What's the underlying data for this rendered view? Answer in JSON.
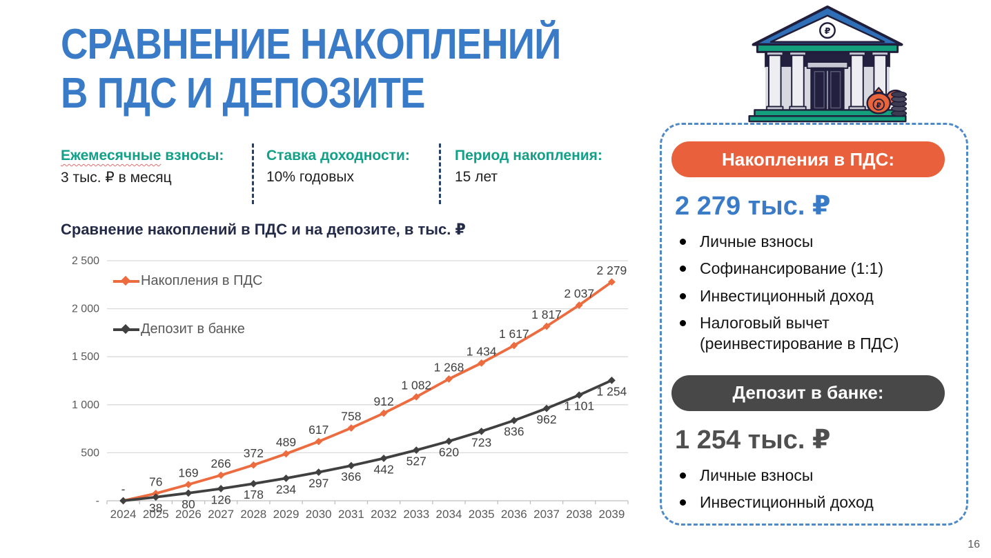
{
  "page": {
    "number": "16",
    "background": "#FFFFFF"
  },
  "title": {
    "line1": "СРАВНЕНИЕ НАКОПЛЕНИЙ",
    "line2": "В ПДС И ДЕПОЗИТЕ",
    "color": "#3A7BC8"
  },
  "parameters": [
    {
      "label_wavy": "Ежемесячные",
      "label_rest": " взносы:",
      "value": "3 тыс. ₽ в месяц"
    },
    {
      "label_wavy": "",
      "label_rest": "Ставка доходности:",
      "value": "10% годовых"
    },
    {
      "label_wavy": "",
      "label_rest": "Период накопления:",
      "value": "15 лет"
    }
  ],
  "colors": {
    "title_blue": "#3A7BC8",
    "accent_teal": "#12A089",
    "accent_orange": "#E8613C",
    "line_orange": "#EC6B3F",
    "line_dark": "#404040",
    "dark_pill": "#484848",
    "panel_border": "#4E8AC8",
    "separator_navy": "#24406B",
    "gridline": "#D9D9D9",
    "axis_text": "#595959",
    "data_label_text": "#3F3F3F"
  },
  "chart_data": {
    "type": "line",
    "title": "Сравнение накоплений в ПДС и на депозите, в тыс. ₽",
    "x": [
      2024,
      2025,
      2026,
      2027,
      2028,
      2029,
      2030,
      2031,
      2032,
      2033,
      2034,
      2035,
      2036,
      2037,
      2038,
      2039
    ],
    "ylim": [
      0,
      2500
    ],
    "ytick_step": 500,
    "ytick_labels": [
      "-",
      "500",
      "1 000",
      "1 500",
      "2 000",
      "2 500"
    ],
    "grid": true,
    "legend_position": "inside-top-left",
    "series": [
      {
        "name": "Накопления в ПДС",
        "color": "#EC6B3F",
        "label_position": "above",
        "values": [
          0,
          76,
          169,
          266,
          372,
          489,
          617,
          758,
          912,
          1082,
          1268,
          1434,
          1617,
          1817,
          2037,
          2279
        ],
        "labels": [
          "-",
          "76",
          "169",
          "266",
          "372",
          "489",
          "617",
          "758",
          "912",
          "1 082",
          "1 268",
          "1 434",
          "1 617",
          "1 817",
          "2 037",
          "2 279"
        ]
      },
      {
        "name": "Депозит в банке",
        "color": "#404040",
        "label_position": "below",
        "values": [
          0,
          38,
          80,
          126,
          178,
          234,
          297,
          366,
          442,
          527,
          620,
          723,
          836,
          962,
          1101,
          1254
        ],
        "labels": [
          "",
          "38",
          "80",
          "126",
          "178",
          "234",
          "297",
          "366",
          "442",
          "527",
          "620",
          "723",
          "836",
          "962",
          "1 101",
          "1 254"
        ]
      }
    ]
  },
  "panel": {
    "pds": {
      "header": "Накопления в ПДС:",
      "amount": "2 279 тыс. ₽",
      "bullets": [
        "Личные взносы",
        "Софинансирование (1:1)",
        "Инвестиционный доход",
        "Налоговый вычет (реинвестирование в ПДС)"
      ]
    },
    "deposit": {
      "header": "Депозит в банке:",
      "amount": "1 254 тыс. ₽",
      "bullets": [
        "Личные взносы",
        "Инвестиционный доход"
      ]
    }
  },
  "illustration": {
    "name": "bank-building",
    "symbol": "₽"
  }
}
